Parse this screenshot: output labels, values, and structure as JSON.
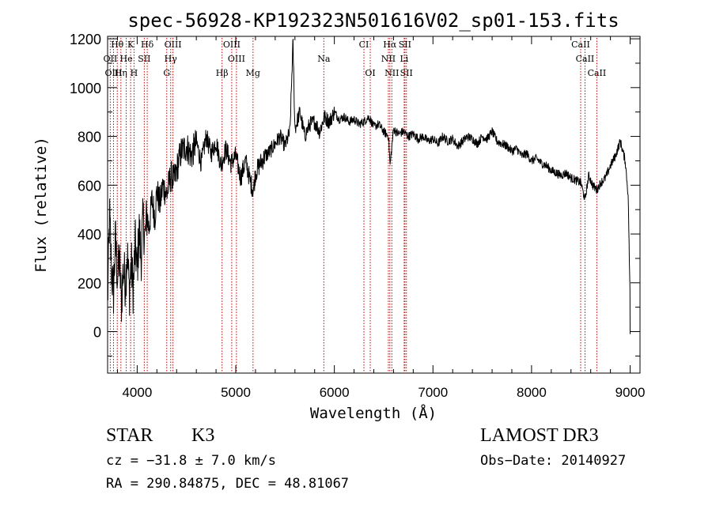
{
  "chart_data": {
    "type": "line",
    "title": "spec-56928-KP192323N501616V02_sp01-153.fits",
    "xlabel": "Wavelength (Å)",
    "ylabel": "Flux (relative)",
    "xlim": [
      3700,
      9100
    ],
    "ylim": [
      -170,
      1210
    ],
    "x_ticks": [
      4000,
      5000,
      6000,
      7000,
      8000,
      9000
    ],
    "x_tick_labels": [
      "4000",
      "5000",
      "6000",
      "7000",
      "8000",
      "9000"
    ],
    "y_ticks": [
      0,
      200,
      400,
      600,
      800,
      1000,
      1200
    ],
    "y_tick_labels": [
      "0",
      "200",
      "400",
      "600",
      "800",
      "1000",
      "1200"
    ],
    "series": [
      {
        "name": "spectrum",
        "x": [
          3700,
          3720,
          3740,
          3760,
          3780,
          3800,
          3820,
          3840,
          3860,
          3880,
          3900,
          3920,
          3940,
          3960,
          3980,
          4000,
          4020,
          4040,
          4060,
          4080,
          4100,
          4120,
          4150,
          4180,
          4200,
          4230,
          4260,
          4300,
          4340,
          4380,
          4420,
          4450,
          4500,
          4550,
          4600,
          4650,
          4700,
          4750,
          4800,
          4850,
          4900,
          4950,
          5000,
          5050,
          5100,
          5150,
          5180,
          5200,
          5250,
          5300,
          5350,
          5400,
          5450,
          5500,
          5550,
          5580,
          5600,
          5650,
          5700,
          5750,
          5800,
          5850,
          5900,
          5950,
          6000,
          6050,
          6100,
          6150,
          6200,
          6250,
          6300,
          6350,
          6400,
          6450,
          6500,
          6550,
          6565,
          6600,
          6650,
          6700,
          6750,
          6800,
          6850,
          6900,
          6950,
          7000,
          7050,
          7100,
          7150,
          7200,
          7250,
          7300,
          7350,
          7400,
          7450,
          7500,
          7550,
          7600,
          7650,
          7700,
          7750,
          7800,
          7850,
          7900,
          7950,
          8000,
          8050,
          8100,
          8150,
          8200,
          8250,
          8300,
          8350,
          8400,
          8450,
          8500,
          8542,
          8580,
          8620,
          8662,
          8700,
          8750,
          8800,
          8850,
          8900,
          8950,
          8980,
          9000
        ],
        "y": [
          120,
          470,
          250,
          160,
          380,
          220,
          300,
          120,
          260,
          200,
          330,
          160,
          280,
          170,
          360,
          250,
          420,
          300,
          460,
          380,
          480,
          420,
          540,
          470,
          580,
          520,
          600,
          560,
          640,
          620,
          700,
          740,
          760,
          720,
          780,
          690,
          800,
          730,
          780,
          680,
          750,
          690,
          720,
          630,
          700,
          610,
          580,
          650,
          690,
          720,
          740,
          770,
          800,
          760,
          820,
          1190,
          830,
          900,
          800,
          850,
          860,
          820,
          880,
          860,
          900,
          870,
          880,
          860,
          870,
          850,
          860,
          880,
          840,
          850,
          820,
          800,
          680,
          830,
          810,
          820,
          800,
          810,
          790,
          800,
          780,
          790,
          770,
          800,
          780,
          790,
          760,
          780,
          800,
          790,
          770,
          800,
          790,
          820,
          780,
          770,
          760,
          740,
          750,
          720,
          730,
          700,
          710,
          690,
          680,
          660,
          650,
          640,
          650,
          630,
          620,
          610,
          540,
          640,
          600,
          580,
          610,
          630,
          680,
          720,
          780,
          700,
          560,
          120
        ]
      }
    ],
    "line_markers": [
      {
        "label": "Hθ",
        "x": 3798,
        "row": 1
      },
      {
        "label": "K",
        "x": 3934,
        "row": 1
      },
      {
        "label": "Hδ",
        "x": 4102,
        "row": 1
      },
      {
        "label": "OIII",
        "x": 4363,
        "row": 1
      },
      {
        "label": "OIII",
        "x": 4959,
        "row": 1
      },
      {
        "label": "CI",
        "x": 6300,
        "row": 1
      },
      {
        "label": "Hα",
        "x": 6563,
        "row": 1
      },
      {
        "label": "SII",
        "x": 6716,
        "row": 1
      },
      {
        "label": "CaII",
        "x": 8498,
        "row": 1
      },
      {
        "label": "OII",
        "x": 3727,
        "row": 2
      },
      {
        "label": "He",
        "x": 3889,
        "row": 2
      },
      {
        "label": "SII",
        "x": 4072,
        "row": 2
      },
      {
        "label": "Hγ",
        "x": 4340,
        "row": 2
      },
      {
        "label": "OIII",
        "x": 5007,
        "row": 2
      },
      {
        "label": "Na",
        "x": 5893,
        "row": 2
      },
      {
        "label": "NII",
        "x": 6548,
        "row": 2
      },
      {
        "label": "Li",
        "x": 6708,
        "row": 2
      },
      {
        "label": "CaII",
        "x": 8542,
        "row": 2
      },
      {
        "label": "OIII",
        "x": 3760,
        "row": 3
      },
      {
        "label": "Hη",
        "x": 3835,
        "row": 3
      },
      {
        "label": "H",
        "x": 3968,
        "row": 3
      },
      {
        "label": "G",
        "x": 4300,
        "row": 3
      },
      {
        "label": "Hβ",
        "x": 4861,
        "row": 3
      },
      {
        "label": "Mg",
        "x": 5175,
        "row": 3
      },
      {
        "label": "OI",
        "x": 6364,
        "row": 3
      },
      {
        "label": "NII",
        "x": 6583,
        "row": 3
      },
      {
        "label": "SII",
        "x": 6731,
        "row": 3
      },
      {
        "label": "CaII",
        "x": 8662,
        "row": 3
      }
    ],
    "marker_color": "#cc0000",
    "line_color": "#000000"
  },
  "info": {
    "object_class": "STAR",
    "subclass": "K3",
    "survey": "LAMOST DR3",
    "cz": "cz = −31.8 ± 7.0 km/s",
    "obs_date": "Obs−Date: 20140927",
    "coords": "RA = 290.84875, DEC =  48.81067"
  }
}
